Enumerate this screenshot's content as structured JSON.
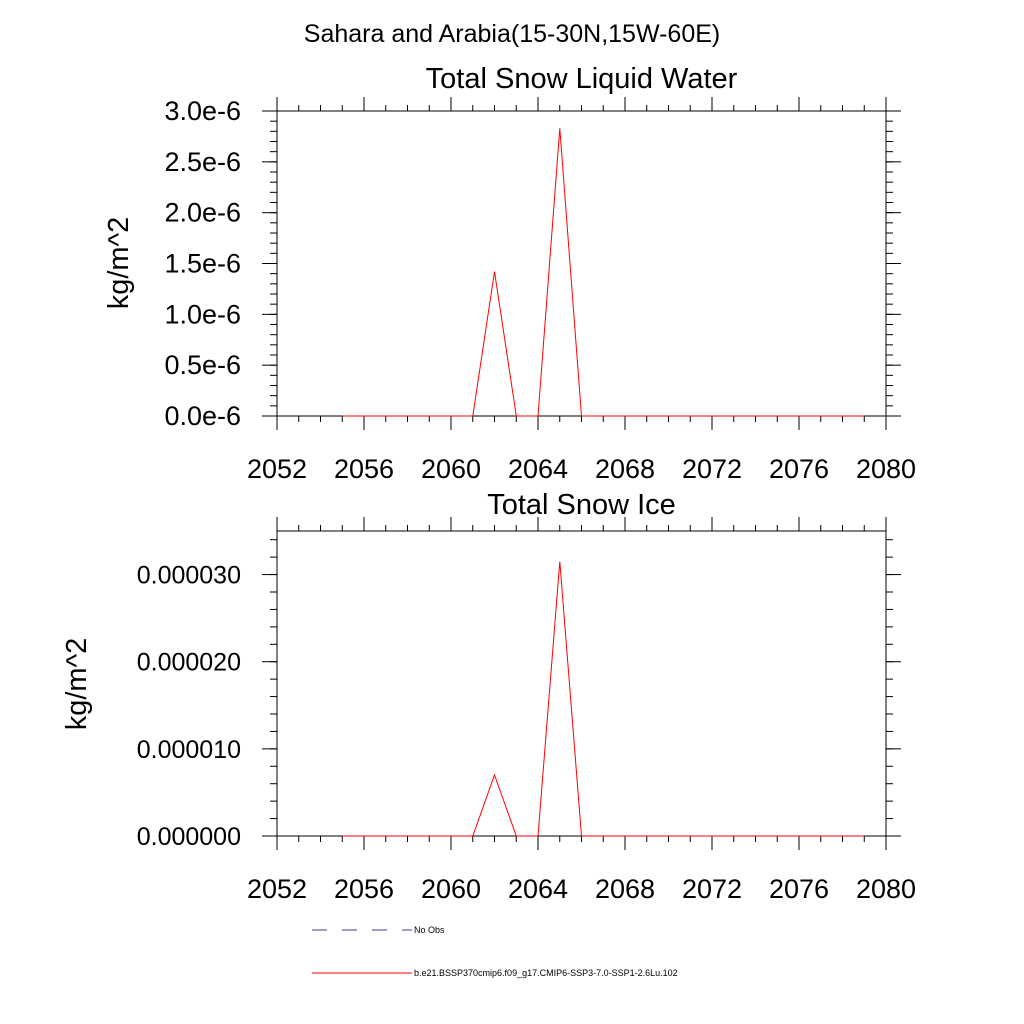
{
  "suptitle": "Sahara and Arabia(15-30N,15W-60E)",
  "colors": {
    "model": "#ff0000",
    "obs": "#3b3b8f",
    "axis": "#000000",
    "background": "#ffffff"
  },
  "legend": {
    "placement": "bottom",
    "items": [
      {
        "label": "No Obs",
        "style": "dashed",
        "color": "#3b3b8f"
      },
      {
        "label": "b.e21.BSSP370cmip6.f09_g17.CMIP6-SSP3-7.0-SSP1-2.6Lu.102",
        "style": "solid",
        "color": "#ff0000"
      }
    ]
  },
  "chart_data": [
    {
      "type": "line",
      "title": "Total Snow Liquid Water",
      "xlabel": "",
      "ylabel": "kg/m^2",
      "xlim": [
        2052,
        2080
      ],
      "ylim": [
        0,
        3e-06
      ],
      "grid": false,
      "xticks": [
        2052,
        2056,
        2060,
        2064,
        2068,
        2072,
        2076,
        2080
      ],
      "xticklabels": [
        "2052",
        "2056",
        "2060",
        "2064",
        "2068",
        "2072",
        "2076",
        "2080"
      ],
      "yticks": [
        0,
        5e-07,
        1e-06,
        1.5e-06,
        2e-06,
        2.5e-06,
        3e-06
      ],
      "yticklabels": [
        "0.0e-6",
        "0.5e-6",
        "1.0e-6",
        "1.5e-6",
        "2.0e-6",
        "2.5e-6",
        "3.0e-6"
      ],
      "x": [
        2055,
        2056,
        2057,
        2058,
        2059,
        2060,
        2061,
        2062,
        2063,
        2064,
        2065,
        2066,
        2067,
        2068,
        2069,
        2070,
        2071,
        2072,
        2073,
        2074,
        2075,
        2076,
        2077,
        2078,
        2079
      ],
      "series": [
        {
          "name": "b.e21.BSSP370cmip6.f09_g17.CMIP6-SSP3-7.0-SSP1-2.6Lu.102",
          "values": [
            0,
            0,
            0,
            0,
            0,
            0,
            0,
            1.42e-06,
            0,
            0,
            2.83e-06,
            0,
            0,
            0,
            0,
            0,
            0,
            0,
            0,
            0,
            0,
            0,
            0,
            0,
            0
          ]
        }
      ]
    },
    {
      "type": "line",
      "title": "Total Snow Ice",
      "xlabel": "",
      "ylabel": "kg/m^2",
      "xlim": [
        2052,
        2080
      ],
      "ylim": [
        0,
        3.5e-05
      ],
      "grid": false,
      "xticks": [
        2052,
        2056,
        2060,
        2064,
        2068,
        2072,
        2076,
        2080
      ],
      "xticklabels": [
        "2052",
        "2056",
        "2060",
        "2064",
        "2068",
        "2072",
        "2076",
        "2080"
      ],
      "yticks": [
        0,
        1e-05,
        2e-05,
        3e-05
      ],
      "yticklabels": [
        "0.000000",
        "0.000010",
        "0.000020",
        "0.000030"
      ],
      "x": [
        2055,
        2056,
        2057,
        2058,
        2059,
        2060,
        2061,
        2062,
        2063,
        2064,
        2065,
        2066,
        2067,
        2068,
        2069,
        2070,
        2071,
        2072,
        2073,
        2074,
        2075,
        2076,
        2077,
        2078,
        2079
      ],
      "series": [
        {
          "name": "b.e21.BSSP370cmip6.f09_g17.CMIP6-SSP3-7.0-SSP1-2.6Lu.102",
          "values": [
            0,
            0,
            0,
            0,
            0,
            0,
            0,
            7e-06,
            0,
            0,
            3.15e-05,
            0,
            0,
            0,
            0,
            0,
            0,
            0,
            0,
            0,
            0,
            0,
            0,
            0,
            0
          ]
        }
      ]
    }
  ]
}
